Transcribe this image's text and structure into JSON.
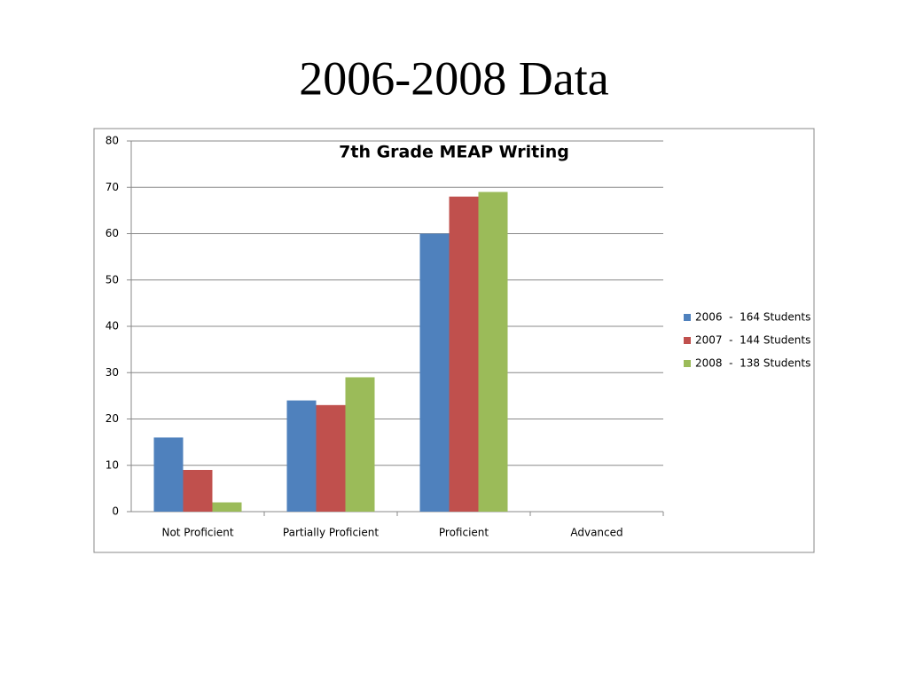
{
  "slide_title": "2006-2008 Data",
  "chart_data": {
    "type": "bar",
    "title": "7th Grade MEAP Writing",
    "categories": [
      "Not Proficient",
      "Partially Proficient",
      "Proficient",
      "Advanced"
    ],
    "series": [
      {
        "name": "2006  -  164 Students",
        "color": "#4f81bd",
        "values": [
          16,
          24,
          60,
          0
        ]
      },
      {
        "name": "2007  -  144 Students",
        "color": "#c0504d",
        "values": [
          9,
          23,
          68,
          0
        ]
      },
      {
        "name": "2008  -  138 Students",
        "color": "#9bbb59",
        "values": [
          2,
          29,
          69,
          0
        ]
      }
    ],
    "ylim": [
      0,
      80
    ],
    "yticks": [
      0,
      10,
      20,
      30,
      40,
      50,
      60,
      70,
      80
    ],
    "grid": true,
    "legend": "right"
  }
}
